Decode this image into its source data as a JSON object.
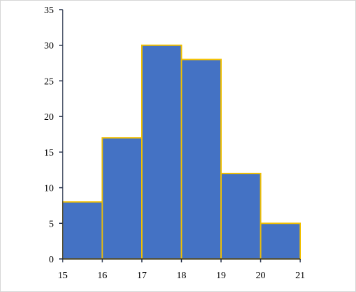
{
  "chart_data": {
    "type": "bar",
    "subtype": "histogram",
    "bin_edges": [
      15,
      16,
      17,
      18,
      19,
      20,
      21
    ],
    "values": [
      8,
      17,
      30,
      28,
      12,
      5
    ],
    "ylim": [
      0,
      35
    ],
    "y_ticks": [
      0,
      5,
      10,
      15,
      20,
      25,
      30,
      35
    ],
    "x_ticks": [
      15,
      16,
      17,
      18,
      19,
      20,
      21
    ],
    "title": "",
    "xlabel": "",
    "ylabel": "",
    "grid": false,
    "colors": {
      "bar_fill": "#4472C4",
      "bar_edge": "#F2C000",
      "axis": "#1F2A44",
      "text": "#000000"
    }
  }
}
